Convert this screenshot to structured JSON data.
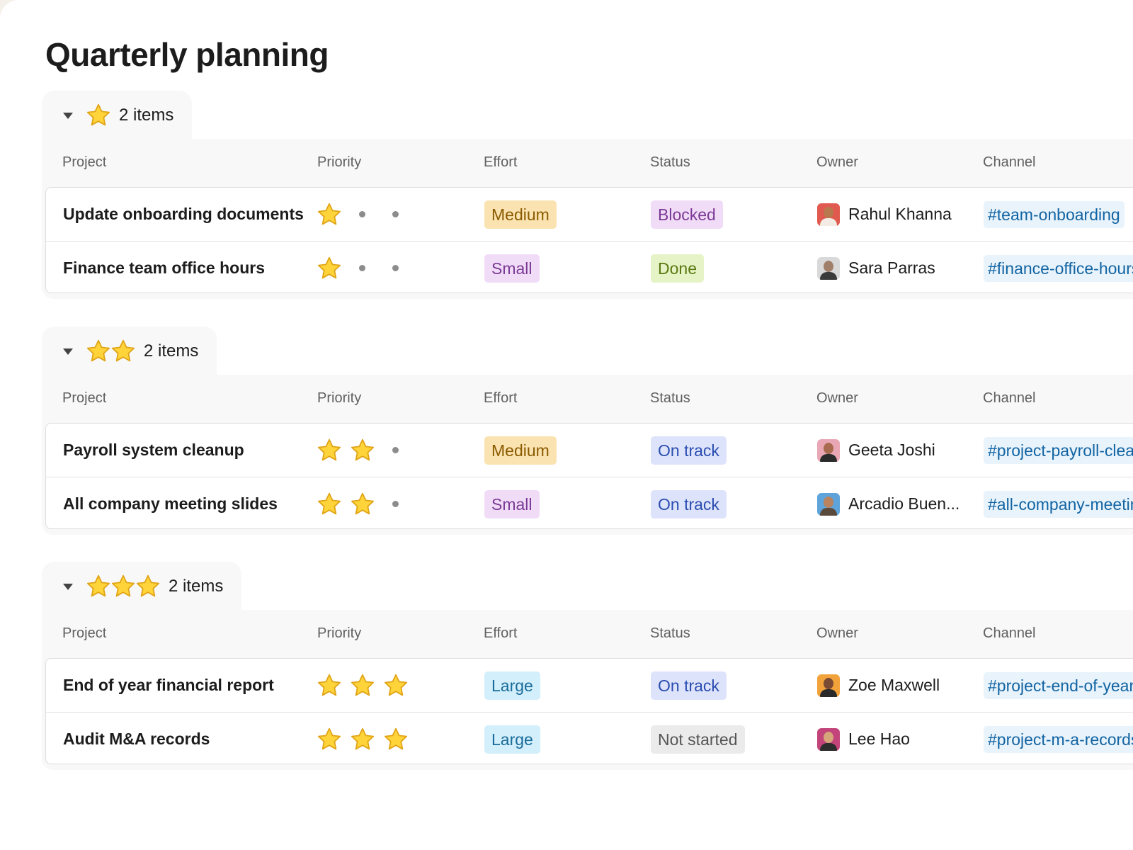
{
  "page": {
    "title": "Quarterly planning"
  },
  "columns": [
    "Project",
    "Priority",
    "Effort",
    "Status",
    "Owner",
    "Channel"
  ],
  "colors": {
    "effort": {
      "Medium": {
        "bg": "#fae3b0",
        "fg": "#8a5a00"
      },
      "Small": {
        "bg": "#f1dcf7",
        "fg": "#7b3a96"
      },
      "Large": {
        "bg": "#d2effb",
        "fg": "#1a6c9a"
      }
    },
    "status": {
      "Blocked": {
        "bg": "#f1dcf7",
        "fg": "#7b3a96"
      },
      "Done": {
        "bg": "#e6f3c6",
        "fg": "#5b7a12"
      },
      "On track": {
        "bg": "#dde3fa",
        "fg": "#2a4db0"
      },
      "Not started": {
        "bg": "#ebebeb",
        "fg": "#555555"
      }
    }
  },
  "groups": [
    {
      "stars": 1,
      "count_label": "2 items",
      "rows": [
        {
          "project": "Update onboarding documents",
          "priority": 1,
          "effort": "Medium",
          "status": "Blocked",
          "owner": {
            "name": "Rahul Khanna",
            "bg": "#e05a4f",
            "skin": "#b8794f",
            "shirt": "#f3ece4"
          },
          "channel": "#team-onboarding"
        },
        {
          "project": "Finance team office hours",
          "priority": 1,
          "effort": "Small",
          "status": "Done",
          "owner": {
            "name": "Sara Parras",
            "bg": "#d9d9d9",
            "skin": "#a0806a",
            "shirt": "#3a3a3a"
          },
          "channel": "#finance-office-hours"
        }
      ]
    },
    {
      "stars": 2,
      "count_label": "2 items",
      "rows": [
        {
          "project": "Payroll system cleanup",
          "priority": 2,
          "effort": "Medium",
          "status": "On track",
          "owner": {
            "name": "Geeta Joshi",
            "bg": "#e9a7b5",
            "skin": "#a86b4f",
            "shirt": "#2b2b2b"
          },
          "channel": "#project-payroll-cleanup"
        },
        {
          "project": "All company meeting slides",
          "priority": 2,
          "effort": "Small",
          "status": "On track",
          "owner": {
            "name": "Arcadio Buen...",
            "bg": "#5ea3d9",
            "skin": "#b98360",
            "shirt": "#5a4a3c"
          },
          "channel": "#all-company-meeting"
        }
      ]
    },
    {
      "stars": 3,
      "count_label": "2 items",
      "rows": [
        {
          "project": "End of year financial report",
          "priority": 3,
          "effort": "Large",
          "status": "On track",
          "owner": {
            "name": "Zoe Maxwell",
            "bg": "#f2a23a",
            "skin": "#7a4a33",
            "shirt": "#2a2a2a"
          },
          "channel": "#project-end-of-year"
        },
        {
          "project": "Audit M&A records",
          "priority": 3,
          "effort": "Large",
          "status": "Not started",
          "owner": {
            "name": "Lee Hao",
            "bg": "#c2447a",
            "skin": "#d7a57a",
            "shirt": "#2d2d2d"
          },
          "channel": "#project-m-a-records"
        }
      ]
    }
  ]
}
